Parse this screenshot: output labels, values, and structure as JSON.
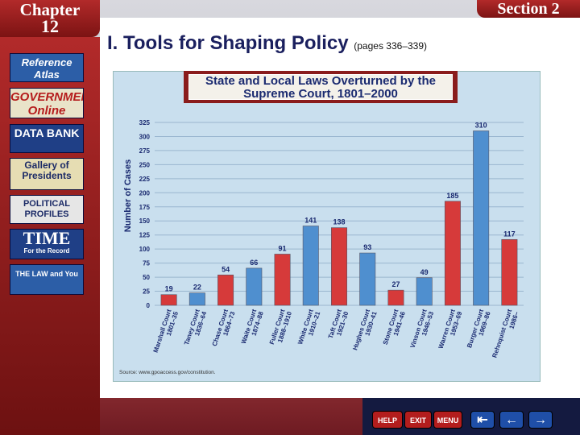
{
  "header": {
    "chapter_label": "Chapter",
    "chapter_number": "12",
    "section_label": "Section 2",
    "title": "I. Tools for Shaping Policy",
    "pages": "(pages 336–339)"
  },
  "sidebar": {
    "items": [
      {
        "label": "Reference Atlas"
      },
      {
        "label": "GOVERNMENT Online"
      },
      {
        "label": "DATA BANK"
      },
      {
        "label": "Gallery of Presidents"
      },
      {
        "label": "POLITICAL PROFILES"
      },
      {
        "label": "TIME",
        "sub": "For the Record"
      },
      {
        "label": "THE LAW and You"
      }
    ]
  },
  "nav": {
    "help": "HELP",
    "exit": "EXIT",
    "menu": "MENU",
    "first": "⇤",
    "back": "←",
    "next": "→"
  },
  "colors": {
    "bar_blue": "#4f8fcf",
    "bar_red": "#d63a3a",
    "header_red": "#8a1c1c",
    "title_navy": "#1a1f5e"
  },
  "chart_data": {
    "type": "bar",
    "title": "State and Local Laws Overturned by the Supreme Court, 1801–2000",
    "ylabel": "Number of Cases",
    "xlabel": "",
    "ylim": [
      0,
      325
    ],
    "yticks": [
      0,
      25,
      50,
      75,
      100,
      125,
      150,
      175,
      200,
      225,
      250,
      275,
      300,
      325
    ],
    "grid": true,
    "categories": [
      [
        "Marshall Court",
        "1801–35"
      ],
      [
        "Taney Court",
        "1836–64"
      ],
      [
        "Chase Court",
        "1864–73"
      ],
      [
        "Waite Court",
        "1874–88"
      ],
      [
        "Fuller Court",
        "1888–1910"
      ],
      [
        "White Court",
        "1910–21"
      ],
      [
        "Taft Court",
        "1921–30"
      ],
      [
        "Hughes Court",
        "1930–41"
      ],
      [
        "Stone Court",
        "1941–46"
      ],
      [
        "Vinson Court",
        "1946–53"
      ],
      [
        "Warren Court",
        "1953–69"
      ],
      [
        "Burger Court",
        "1969–86"
      ],
      [
        "Rehnquist Court",
        "1986–"
      ]
    ],
    "values": [
      19,
      22,
      54,
      66,
      91,
      141,
      138,
      93,
      27,
      49,
      185,
      310,
      117
    ],
    "bar_colors": [
      "red",
      "blue",
      "red",
      "blue",
      "red",
      "blue",
      "red",
      "blue",
      "red",
      "blue",
      "red",
      "blue",
      "red"
    ],
    "source": "Source: www.gpoaccess.gov/constitution."
  }
}
